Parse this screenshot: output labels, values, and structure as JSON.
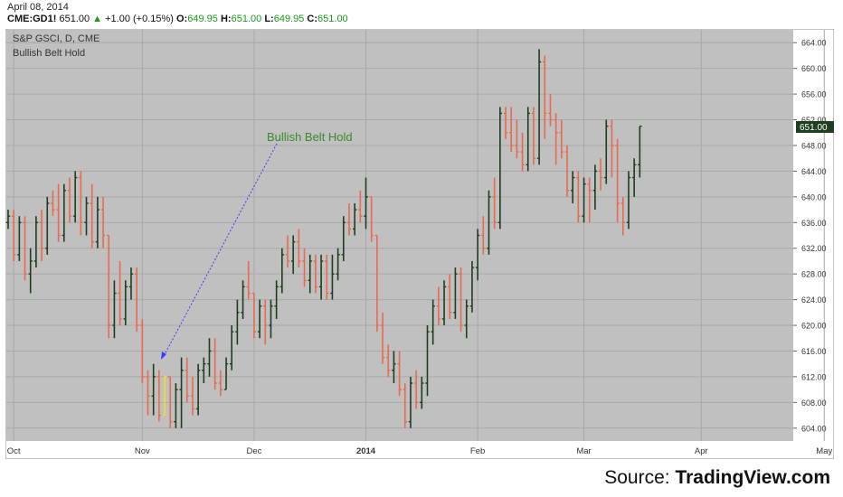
{
  "header": {
    "date": "April 08, 2014",
    "symbol": "CME:GD1!",
    "last": "651.00",
    "change": "+1.00 (+0.15%)",
    "o_label": "O:",
    "o_value": "649.95",
    "h_label": "H:",
    "h_value": "651.00",
    "l_label": "L:",
    "l_value": "649.95",
    "c_label": "C:",
    "c_value": "651.00"
  },
  "source": {
    "prefix": "Source: ",
    "name": "TradingView.com"
  },
  "chart_data": {
    "type": "ohlc-bar",
    "title": "S&P GSCI, D, CME",
    "subtitle": "Bullish Belt Hold",
    "annotation": "Bullish Belt Hold",
    "price_label": "651.00",
    "ylim": [
      602,
      666
    ],
    "y_ticks": [
      "664.00",
      "660.00",
      "656.00",
      "652.00",
      "648.00",
      "644.00",
      "640.00",
      "636.00",
      "632.00",
      "628.00",
      "624.00",
      "620.00",
      "616.00",
      "612.00",
      "608.00",
      "604.00"
    ],
    "x_ticks": [
      {
        "label": "Oct",
        "bar": 1,
        "bold": false
      },
      {
        "label": "Nov",
        "bar": 24,
        "bold": false
      },
      {
        "label": "Dec",
        "bar": 44,
        "bold": false
      },
      {
        "label": "2014",
        "bar": 64,
        "bold": true
      },
      {
        "label": "Feb",
        "bar": 84,
        "bold": false
      },
      {
        "label": "Mar",
        "bar": 103,
        "bold": false
      },
      {
        "label": "Apr",
        "bar": 124,
        "bold": false
      },
      {
        "label": "May",
        "bar": 146,
        "bold": false
      }
    ],
    "grid": true,
    "colors": {
      "up": "#1f3d1f",
      "down": "#e86a50",
      "highlight": "#f0e020",
      "background": "#c0c0c0",
      "annotation_text": "#3a8a2a",
      "annotation_line": "#3a3aff"
    },
    "highlight_bar": 28,
    "bars": [
      [
        636,
        638,
        635,
        637
      ],
      [
        637,
        638,
        630,
        631
      ],
      [
        631,
        637,
        630,
        636
      ],
      [
        636,
        637,
        627,
        628
      ],
      [
        628,
        632,
        625,
        630
      ],
      [
        630,
        637,
        629,
        636
      ],
      [
        636,
        638,
        630,
        632
      ],
      [
        632,
        640,
        631,
        639
      ],
      [
        639,
        641,
        637,
        638
      ],
      [
        638,
        642,
        633,
        634
      ],
      [
        634,
        642,
        633,
        641
      ],
      [
        641,
        643,
        636,
        637
      ],
      [
        637,
        644,
        636,
        643
      ],
      [
        643,
        644,
        634,
        636
      ],
      [
        636,
        640,
        634,
        639
      ],
      [
        639,
        642,
        632,
        633
      ],
      [
        633,
        640,
        632,
        638
      ],
      [
        638,
        640,
        632,
        634
      ],
      [
        634,
        634,
        618,
        620
      ],
      [
        620,
        627,
        618,
        625
      ],
      [
        625,
        630,
        620,
        621
      ],
      [
        621,
        627,
        620,
        626
      ],
      [
        626,
        629,
        624,
        628
      ],
      [
        628,
        629,
        619,
        620
      ],
      [
        620,
        621,
        611,
        612
      ],
      [
        612,
        613,
        606,
        609
      ],
      [
        609,
        614,
        606,
        612
      ],
      [
        612,
        613,
        605,
        606
      ],
      [
        606,
        612,
        606,
        612
      ],
      [
        612,
        612,
        604,
        605
      ],
      [
        605,
        611,
        604,
        610
      ],
      [
        610,
        615,
        604,
        613
      ],
      [
        613,
        615,
        608,
        609
      ],
      [
        609,
        612,
        606,
        607
      ],
      [
        607,
        614,
        606,
        613
      ],
      [
        613,
        615,
        611,
        614
      ],
      [
        614,
        618,
        612,
        616
      ],
      [
        616,
        618,
        610,
        611
      ],
      [
        611,
        613,
        609,
        610
      ],
      [
        610,
        615,
        610,
        614
      ],
      [
        614,
        620,
        613,
        619
      ],
      [
        619,
        624,
        617,
        622
      ],
      [
        622,
        627,
        621,
        626
      ],
      [
        626,
        630,
        624,
        625
      ],
      [
        625,
        625,
        618,
        619
      ],
      [
        619,
        624,
        618,
        623
      ],
      [
        623,
        624,
        617,
        620
      ],
      [
        620,
        624,
        618,
        623
      ],
      [
        623,
        627,
        621,
        626
      ],
      [
        626,
        632,
        625,
        631
      ],
      [
        631,
        634,
        629,
        630
      ],
      [
        630,
        634,
        628,
        633
      ],
      [
        633,
        635,
        629,
        630
      ],
      [
        630,
        632,
        626,
        627
      ],
      [
        627,
        631,
        625,
        630
      ],
      [
        630,
        631,
        625,
        626
      ],
      [
        626,
        631,
        624,
        630
      ],
      [
        630,
        631,
        624,
        625
      ],
      [
        625,
        631,
        624,
        628
      ],
      [
        628,
        632,
        627,
        631
      ],
      [
        631,
        637,
        630,
        636
      ],
      [
        636,
        639,
        634,
        635
      ],
      [
        635,
        639,
        634,
        638
      ],
      [
        638,
        641,
        636,
        637
      ],
      [
        637,
        643,
        635,
        640
      ],
      [
        640,
        640,
        633,
        634
      ],
      [
        634,
        634,
        619,
        620
      ],
      [
        620,
        622,
        614,
        615
      ],
      [
        615,
        617,
        612,
        613
      ],
      [
        613,
        616,
        611,
        614
      ],
      [
        614,
        616,
        609,
        610
      ],
      [
        610,
        611,
        604,
        605
      ],
      [
        605,
        612,
        604,
        611
      ],
      [
        611,
        613,
        607,
        608
      ],
      [
        608,
        612,
        607,
        611
      ],
      [
        611,
        620,
        609,
        619
      ],
      [
        619,
        624,
        617,
        623
      ],
      [
        623,
        626,
        620,
        621
      ],
      [
        621,
        627,
        620,
        626
      ],
      [
        626,
        628,
        621,
        622
      ],
      [
        622,
        629,
        621,
        628
      ],
      [
        628,
        629,
        619,
        620
      ],
      [
        620,
        624,
        618,
        623
      ],
      [
        623,
        630,
        622,
        629
      ],
      [
        629,
        635,
        627,
        634
      ],
      [
        634,
        637,
        631,
        632
      ],
      [
        632,
        641,
        631,
        640
      ],
      [
        640,
        643,
        635,
        636
      ],
      [
        636,
        654,
        635,
        653
      ],
      [
        653,
        654,
        649,
        650
      ],
      [
        650,
        654,
        647,
        648
      ],
      [
        648,
        652,
        646,
        647
      ],
      [
        647,
        650,
        644,
        645
      ],
      [
        645,
        654,
        644,
        653
      ],
      [
        653,
        654,
        645,
        646
      ],
      [
        646,
        663,
        645,
        661
      ],
      [
        661,
        662,
        649,
        653
      ],
      [
        653,
        656,
        651,
        652
      ],
      [
        652,
        653,
        645,
        650
      ],
      [
        650,
        652,
        646,
        647
      ],
      [
        647,
        648,
        640,
        641
      ],
      [
        641,
        644,
        639,
        643
      ],
      [
        643,
        644,
        636,
        637
      ],
      [
        637,
        643,
        636,
        642
      ],
      [
        642,
        643,
        636,
        641
      ],
      [
        641,
        645,
        638,
        644
      ],
      [
        644,
        646,
        641,
        643
      ],
      [
        643,
        652,
        642,
        651
      ],
      [
        651,
        652,
        643,
        648
      ],
      [
        648,
        649,
        636,
        639
      ],
      [
        639,
        640,
        634,
        636
      ],
      [
        636,
        644,
        635,
        643
      ],
      [
        643,
        646,
        640,
        645
      ],
      [
        645,
        651,
        643,
        651
      ]
    ]
  }
}
